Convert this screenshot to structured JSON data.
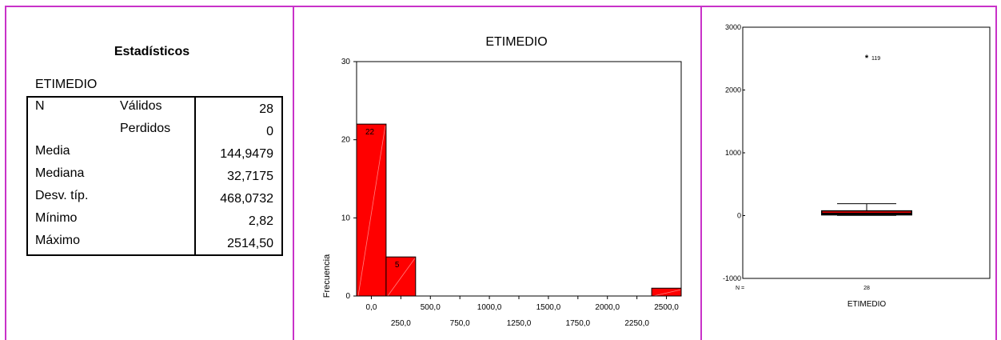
{
  "stats": {
    "title": "Estadísticos",
    "variable": "ETIMEDIO",
    "rows": [
      {
        "label": "N",
        "sublabel": "Válidos",
        "value": "28"
      },
      {
        "label": "",
        "sublabel": "Perdidos",
        "value": "0"
      },
      {
        "label": "Media",
        "sublabel": "",
        "value": "144,9479"
      },
      {
        "label": "Mediana",
        "sublabel": "",
        "value": "32,7175"
      },
      {
        "label": "Desv. típ.",
        "sublabel": "",
        "value": "468,0732"
      },
      {
        "label": "Mínimo",
        "sublabel": "",
        "value": "2,82"
      },
      {
        "label": "Máximo",
        "sublabel": "",
        "value": "2514,50"
      }
    ]
  },
  "chart_data": [
    {
      "type": "bar",
      "title": "ETIMEDIO",
      "xlabel": "",
      "ylabel": "Frecuencia",
      "ylim": [
        0,
        30
      ],
      "xlim": [
        -125,
        2625
      ],
      "yticks": [
        "0",
        "10",
        "20",
        "30"
      ],
      "xticks_upper": [
        "0,0",
        "500,0",
        "1000,0",
        "1500,0",
        "2000,0",
        "2500,0"
      ],
      "xticks_lower": [
        "250,0",
        "750,0",
        "1250,0",
        "1750,0",
        "2250,0"
      ],
      "bins": [
        {
          "from": -125,
          "to": 125,
          "count": 22,
          "label": "22"
        },
        {
          "from": 125,
          "to": 375,
          "count": 5,
          "label": "5"
        },
        {
          "from": 2375,
          "to": 2625,
          "count": 1,
          "label": ""
        }
      ],
      "bar_color": "#ff0000",
      "grid": false
    },
    {
      "type": "boxplot",
      "xlabel": "ETIMEDIO",
      "n_label": "N =",
      "n": "28",
      "ylim": [
        -1000,
        3000
      ],
      "yticks": [
        "-1000",
        "0",
        "1000",
        "2000",
        "3000"
      ],
      "box": {
        "q1": 12,
        "median": 33,
        "q3": 75,
        "whisker_low": 2.82,
        "whisker_high": 190
      },
      "outliers": [
        {
          "value": 2514.5,
          "label": "119"
        }
      ],
      "box_color": "#ff0000"
    }
  ]
}
